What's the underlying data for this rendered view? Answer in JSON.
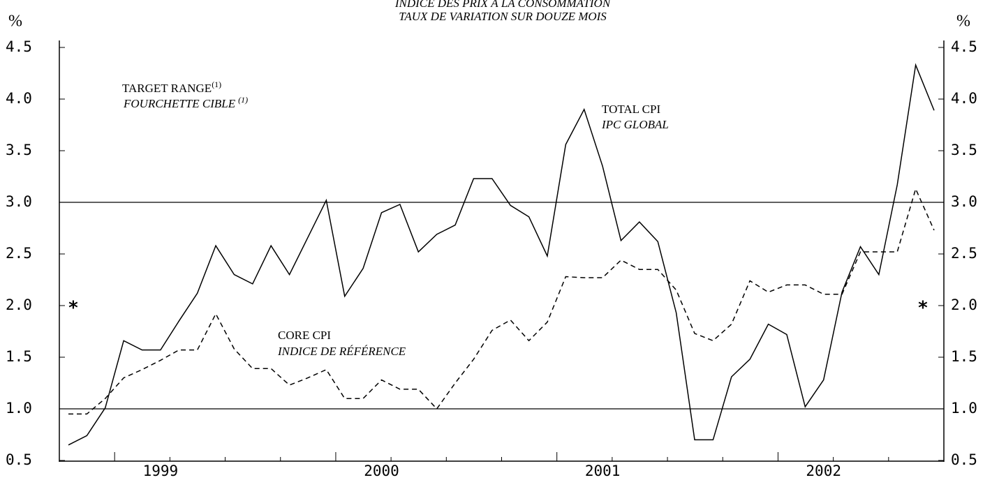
{
  "chart_data": {
    "type": "line",
    "title": "INDICE DES PRIX À LA CONSOMMATION",
    "subtitle": "TAUX DE VARIATION SUR DOUZE MOIS",
    "y_unit": "%",
    "y2_unit": "%",
    "categories": [
      null,
      null,
      null,
      null,
      null,
      "1999",
      null,
      null,
      null,
      null,
      null,
      null,
      null,
      null,
      null,
      null,
      null,
      "2000",
      null,
      null,
      null,
      null,
      null,
      null,
      null,
      null,
      null,
      null,
      null,
      "2001",
      null,
      null,
      null,
      null,
      null,
      null,
      null,
      null,
      null,
      null,
      null,
      "2002",
      null,
      null,
      null,
      null,
      null,
      null
    ],
    "series": [
      {
        "name": "TOTAL CPI",
        "name_fr": "IPC GLOBAL",
        "color": "#000000",
        "dash": false,
        "values": [
          0.65,
          0.74,
          1.01,
          1.66,
          1.57,
          1.57,
          1.85,
          2.12,
          2.58,
          2.3,
          2.21,
          2.58,
          2.3,
          2.66,
          3.02,
          2.09,
          2.36,
          2.9,
          2.98,
          2.52,
          2.69,
          2.78,
          3.23,
          3.23,
          2.97,
          2.86,
          2.48,
          3.56,
          3.9,
          3.35,
          2.63,
          2.81,
          2.62,
          1.93,
          0.7,
          0.7,
          1.31,
          1.48,
          1.82,
          1.72,
          1.02,
          1.28,
          2.13,
          2.57,
          2.3,
          3.17,
          4.33,
          3.89
        ]
      },
      {
        "name": "CORE CPI",
        "name_fr": "INDICE DE RÉFÉRENCE",
        "color": "#000000",
        "dash": true,
        "values": [
          0.95,
          0.95,
          1.1,
          1.3,
          1.38,
          1.47,
          1.57,
          1.57,
          1.92,
          1.58,
          1.39,
          1.39,
          1.23,
          1.3,
          1.38,
          1.1,
          1.1,
          1.28,
          1.19,
          1.19,
          1.0,
          1.25,
          1.48,
          1.76,
          1.86,
          1.66,
          1.84,
          2.28,
          2.27,
          2.27,
          2.44,
          2.35,
          2.35,
          2.15,
          1.73,
          1.66,
          1.82,
          2.24,
          2.13,
          2.2,
          2.2,
          2.11,
          2.11,
          2.52,
          2.52,
          2.52,
          3.13,
          2.73
        ]
      }
    ],
    "target_range": {
      "label": "TARGET RANGE",
      "label_fr": "FOURCHETTE CIBLE",
      "note": "(1)",
      "values": [
        1.0,
        3.0
      ]
    },
    "marker": {
      "text": "*",
      "value": 2.0
    },
    "ylim": [
      0.5,
      4.5
    ],
    "yticks": [
      0.5,
      {
        "value": 1.0,
        "label": "1.0"
      },
      1.5,
      {
        "value": 2.0,
        "label": "2.0"
      },
      2.5,
      {
        "value": 3.0,
        "label": "3.0"
      },
      3.5,
      {
        "value": 4.0,
        "label": "4.0"
      },
      4.5
    ]
  }
}
